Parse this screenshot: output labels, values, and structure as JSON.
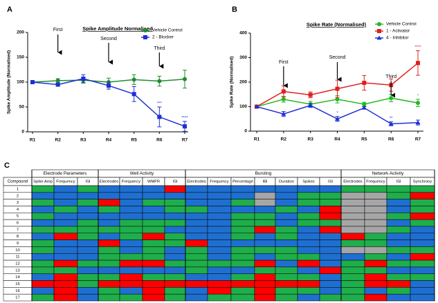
{
  "chart_data": [
    {
      "type": "line",
      "label": "A",
      "title": "Spike Amplitude Normalised",
      "y_label": "Spike Amplitude (Normalised)",
      "categories": [
        "R1",
        "R2",
        "R3",
        "R4",
        "R5",
        "R6",
        "R7"
      ],
      "ylim": [
        0,
        200
      ],
      "yticks": [
        0,
        50,
        100,
        150,
        200
      ],
      "legend": "upper right",
      "annotations": [
        "First",
        "Second",
        "Third"
      ],
      "significance": [
        "***",
        "****"
      ],
      "series": [
        {
          "name": "Vehicle Control",
          "color": "#1e8c2e",
          "marker": "circle",
          "values": [
            100,
            103,
            104,
            100,
            105,
            102,
            106
          ],
          "errors": [
            0,
            4,
            6,
            8,
            10,
            10,
            18
          ]
        },
        {
          "name": "2 - Blocker",
          "color": "#1f2fd6",
          "marker": "square",
          "values": [
            100,
            95,
            107,
            93,
            76,
            30,
            11
          ],
          "errors": [
            0,
            3,
            8,
            7,
            15,
            20,
            10
          ]
        }
      ]
    },
    {
      "type": "line",
      "label": "B",
      "title": "Spike Rate (Normalised)",
      "y_label": "Spike Rate (Normalised)",
      "categories": [
        "R1",
        "R2",
        "R3",
        "R4",
        "R5",
        "R6",
        "R7"
      ],
      "ylim": [
        0,
        400
      ],
      "yticks": [
        0,
        100,
        200,
        300,
        400
      ],
      "legend": "upper right",
      "annotations": [
        "First",
        "Second",
        "Third"
      ],
      "significance": [
        "*",
        "**",
        "****",
        "*"
      ],
      "series": [
        {
          "name": "Vehicle Control",
          "color": "#22b822",
          "marker": "circle",
          "values": [
            100,
            130,
            110,
            130,
            110,
            135,
            115
          ],
          "errors": [
            0,
            12,
            12,
            15,
            8,
            15,
            15
          ]
        },
        {
          "name": "1 - Activator",
          "color": "#e01f1f",
          "marker": "square",
          "values": [
            100,
            162,
            148,
            173,
            197,
            188,
            278
          ],
          "errors": [
            0,
            22,
            12,
            35,
            30,
            25,
            50
          ]
        },
        {
          "name": "4 - Inhibitor",
          "color": "#1f2fd6",
          "marker": "triangle",
          "values": [
            100,
            70,
            105,
            50,
            95,
            30,
            35
          ],
          "errors": [
            0,
            10,
            8,
            10,
            5,
            8,
            10
          ]
        }
      ]
    },
    {
      "type": "heatmap",
      "label": "C",
      "row_header": "Compound",
      "colors": {
        "g": "#1fae4b",
        "b": "#1f6fd0",
        "r": "#ff0000",
        "x": "#a6a6a6"
      },
      "groups": [
        {
          "name": "Electrode Parameters",
          "columns": [
            "Spike Amp",
            "Frequency",
            "ISI"
          ]
        },
        {
          "name": "Well Activity",
          "columns": [
            "Electrodes",
            "Frequency",
            "WMFR",
            "ISI"
          ]
        },
        {
          "name": "Bursting",
          "columns": [
            "Electrodes",
            "Frequency",
            "Percentage",
            "IBI",
            "Duration",
            "Spikes",
            "ISI"
          ]
        },
        {
          "name": "Network Activity",
          "columns": [
            "Electrodes",
            "Frequency",
            "ISI",
            "Synchrony"
          ]
        }
      ],
      "rows": [
        1,
        2,
        3,
        4,
        5,
        6,
        7,
        8,
        9,
        10,
        11,
        12,
        13,
        14,
        15,
        16,
        17
      ],
      "cells": [
        [
          "g",
          "b",
          "g",
          "b",
          "b",
          "b",
          "r",
          "b",
          "b",
          "b",
          "b",
          "b",
          "b",
          "b",
          "g",
          "g",
          "g",
          "g"
        ],
        [
          "b",
          "b",
          "b",
          "b",
          "b",
          "b",
          "b",
          "b",
          "b",
          "b",
          "x",
          "b",
          "g",
          "g",
          "x",
          "x",
          "g",
          "r"
        ],
        [
          "g",
          "b",
          "g",
          "r",
          "b",
          "g",
          "g",
          "b",
          "b",
          "g",
          "x",
          "b",
          "g",
          "g",
          "x",
          "x",
          "b",
          "g"
        ],
        [
          "b",
          "g",
          "b",
          "g",
          "b",
          "b",
          "g",
          "g",
          "b",
          "b",
          "b",
          "g",
          "b",
          "r",
          "x",
          "x",
          "b",
          "g"
        ],
        [
          "g",
          "b",
          "b",
          "b",
          "b",
          "b",
          "b",
          "b",
          "b",
          "g",
          "g",
          "b",
          "g",
          "r",
          "x",
          "x",
          "g",
          "r"
        ],
        [
          "b",
          "b",
          "g",
          "b",
          "g",
          "g",
          "g",
          "b",
          "b",
          "g",
          "g",
          "b",
          "g",
          "g",
          "x",
          "x",
          "b",
          "g"
        ],
        [
          "g",
          "g",
          "g",
          "g",
          "g",
          "g",
          "b",
          "b",
          "b",
          "g",
          "r",
          "g",
          "b",
          "r",
          "x",
          "x",
          "g",
          "b"
        ],
        [
          "b",
          "r",
          "g",
          "b",
          "g",
          "r",
          "g",
          "b",
          "b",
          "g",
          "b",
          "g",
          "b",
          "b",
          "r",
          "g",
          "b",
          "b"
        ],
        [
          "g",
          "b",
          "b",
          "r",
          "b",
          "g",
          "g",
          "r",
          "b",
          "b",
          "b",
          "b",
          "b",
          "b",
          "g",
          "g",
          "b",
          "b"
        ],
        [
          "g",
          "b",
          "b",
          "g",
          "b",
          "g",
          "b",
          "g",
          "b",
          "g",
          "g",
          "g",
          "b",
          "b",
          "x",
          "x",
          "g",
          "g"
        ],
        [
          "b",
          "b",
          "b",
          "g",
          "g",
          "g",
          "b",
          "g",
          "b",
          "g",
          "b",
          "g",
          "g",
          "b",
          "b",
          "g",
          "b",
          "r"
        ],
        [
          "g",
          "r",
          "g",
          "g",
          "r",
          "r",
          "g",
          "g",
          "g",
          "g",
          "r",
          "b",
          "r",
          "b",
          "g",
          "r",
          "g",
          "g"
        ],
        [
          "g",
          "g",
          "b",
          "b",
          "b",
          "b",
          "b",
          "g",
          "b",
          "b",
          "g",
          "g",
          "b",
          "r",
          "g",
          "g",
          "b",
          "b"
        ],
        [
          "b",
          "r",
          "g",
          "g",
          "r",
          "g",
          "g",
          "b",
          "b",
          "g",
          "r",
          "g",
          "g",
          "b",
          "g",
          "r",
          "g",
          "g"
        ],
        [
          "r",
          "r",
          "g",
          "r",
          "r",
          "r",
          "r",
          "r",
          "r",
          "r",
          "r",
          "r",
          "r",
          "b",
          "g",
          "r",
          "r",
          "b"
        ],
        [
          "b",
          "r",
          "b",
          "g",
          "b",
          "r",
          "g",
          "b",
          "r",
          "g",
          "r",
          "g",
          "g",
          "b",
          "g",
          "b",
          "g",
          "b"
        ],
        [
          "g",
          "r",
          "b",
          "g",
          "g",
          "r",
          "g",
          "b",
          "g",
          "g",
          "r",
          "g",
          "b",
          "g",
          "g",
          "r",
          "b",
          "b"
        ]
      ]
    }
  ]
}
